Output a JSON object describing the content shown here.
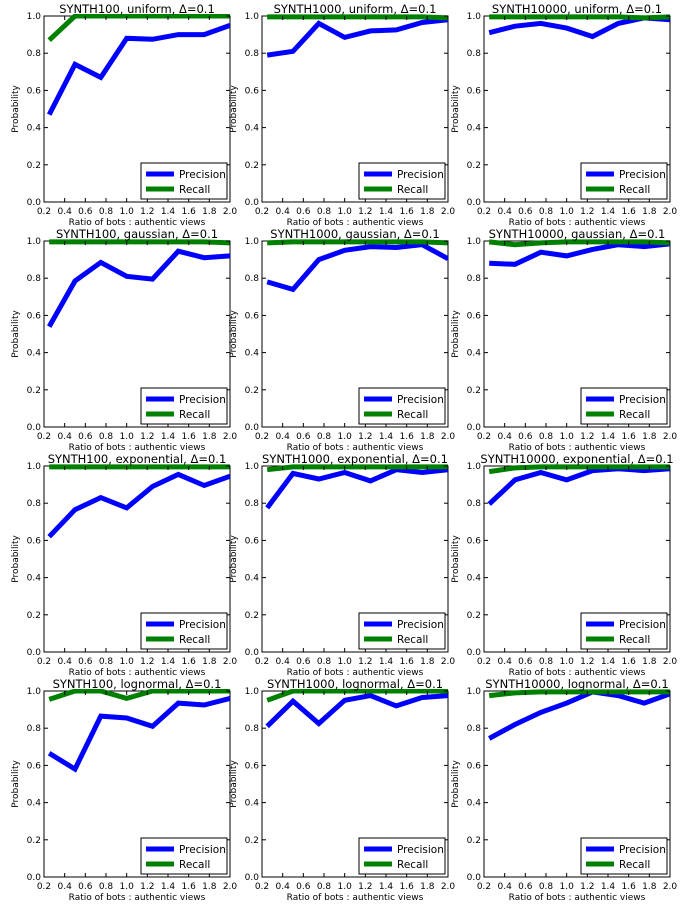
{
  "colors": {
    "precision": "#0000ff",
    "recall": "#008000"
  },
  "shared_axes": {
    "xlabel": "Ratio of bots : authentic views",
    "ylabel": "Probability",
    "xlim": [
      0.2,
      2.0
    ],
    "ylim": [
      0.0,
      1.0
    ],
    "xticks": [
      "0.2",
      "0.4",
      "0.6",
      "0.8",
      "1.0",
      "1.2",
      "1.4",
      "1.6",
      "1.8",
      "2.0"
    ],
    "yticks": [
      "0.0",
      "0.2",
      "0.4",
      "0.6",
      "0.8",
      "1.0"
    ],
    "legend_position": "lower right"
  },
  "chart_data": [
    {
      "type": "line",
      "title": "SYNTH100, uniform, Δ=0.1",
      "x": [
        0.25,
        0.5,
        0.75,
        1.0,
        1.25,
        1.5,
        1.75,
        2.0
      ],
      "series": [
        {
          "name": "Precision",
          "values": [
            0.47,
            0.74,
            0.67,
            0.88,
            0.875,
            0.9,
            0.9,
            0.95
          ]
        },
        {
          "name": "Recall",
          "values": [
            0.87,
            1.0,
            1.0,
            1.0,
            1.0,
            1.0,
            1.0,
            1.0
          ]
        }
      ]
    },
    {
      "type": "line",
      "title": "SYNTH1000, uniform, Δ=0.1",
      "x": [
        0.25,
        0.5,
        0.75,
        1.0,
        1.25,
        1.5,
        1.75,
        2.0
      ],
      "series": [
        {
          "name": "Precision",
          "values": [
            0.79,
            0.81,
            0.96,
            0.885,
            0.92,
            0.925,
            0.965,
            0.98
          ]
        },
        {
          "name": "Recall",
          "values": [
            0.995,
            0.995,
            0.995,
            0.995,
            0.995,
            0.995,
            0.995,
            0.99
          ]
        }
      ]
    },
    {
      "type": "line",
      "title": "SYNTH10000, uniform, Δ=0.1",
      "x": [
        0.25,
        0.5,
        0.75,
        1.0,
        1.25,
        1.5,
        1.75,
        2.0
      ],
      "series": [
        {
          "name": "Precision",
          "values": [
            0.91,
            0.945,
            0.96,
            0.935,
            0.89,
            0.96,
            0.99,
            0.98
          ]
        },
        {
          "name": "Recall",
          "values": [
            0.995,
            0.995,
            0.995,
            0.995,
            0.995,
            0.995,
            0.99,
            0.995
          ]
        }
      ]
    },
    {
      "type": "line",
      "title": "SYNTH100, gaussian, Δ=0.1",
      "x": [
        0.25,
        0.5,
        0.75,
        1.0,
        1.25,
        1.5,
        1.75,
        2.0
      ],
      "series": [
        {
          "name": "Precision",
          "values": [
            0.54,
            0.785,
            0.885,
            0.81,
            0.795,
            0.945,
            0.91,
            0.92
          ]
        },
        {
          "name": "Recall",
          "values": [
            0.995,
            0.995,
            0.995,
            0.995,
            0.995,
            0.995,
            0.995,
            0.99
          ]
        }
      ]
    },
    {
      "type": "line",
      "title": "SYNTH1000, gaussian, Δ=0.1",
      "x": [
        0.25,
        0.5,
        0.75,
        1.0,
        1.25,
        1.5,
        1.75,
        2.0
      ],
      "series": [
        {
          "name": "Precision",
          "values": [
            0.78,
            0.74,
            0.9,
            0.95,
            0.97,
            0.965,
            0.98,
            0.905
          ]
        },
        {
          "name": "Recall",
          "values": [
            0.99,
            0.995,
            0.995,
            0.995,
            0.995,
            0.995,
            0.995,
            0.99
          ]
        }
      ]
    },
    {
      "type": "line",
      "title": "SYNTH10000, gaussian, Δ=0.1",
      "x": [
        0.25,
        0.5,
        0.75,
        1.0,
        1.25,
        1.5,
        1.75,
        2.0
      ],
      "series": [
        {
          "name": "Precision",
          "values": [
            0.88,
            0.875,
            0.94,
            0.92,
            0.955,
            0.98,
            0.97,
            0.985
          ]
        },
        {
          "name": "Recall",
          "values": [
            0.995,
            0.98,
            0.99,
            0.995,
            0.995,
            0.995,
            0.995,
            0.99
          ]
        }
      ]
    },
    {
      "type": "line",
      "title": "SYNTH100, exponential, Δ=0.1",
      "x": [
        0.25,
        0.5,
        0.75,
        1.0,
        1.25,
        1.5,
        1.75,
        2.0
      ],
      "series": [
        {
          "name": "Precision",
          "values": [
            0.62,
            0.765,
            0.83,
            0.775,
            0.89,
            0.955,
            0.895,
            0.945
          ]
        },
        {
          "name": "Recall",
          "values": [
            0.995,
            0.995,
            0.995,
            0.995,
            0.995,
            0.995,
            0.995,
            0.995
          ]
        }
      ]
    },
    {
      "type": "line",
      "title": "SYNTH1000, exponential, Δ=0.1",
      "x": [
        0.25,
        0.5,
        0.75,
        1.0,
        1.25,
        1.5,
        1.75,
        2.0
      ],
      "series": [
        {
          "name": "Precision",
          "values": [
            0.775,
            0.96,
            0.93,
            0.965,
            0.92,
            0.98,
            0.965,
            0.98
          ]
        },
        {
          "name": "Recall",
          "values": [
            0.98,
            0.995,
            0.995,
            0.995,
            0.995,
            0.995,
            0.995,
            0.995
          ]
        }
      ]
    },
    {
      "type": "line",
      "title": "SYNTH10000, exponential, Δ=0.1",
      "x": [
        0.25,
        0.5,
        0.75,
        1.0,
        1.25,
        1.5,
        1.75,
        2.0
      ],
      "series": [
        {
          "name": "Precision",
          "values": [
            0.795,
            0.925,
            0.965,
            0.925,
            0.975,
            0.985,
            0.975,
            0.985
          ]
        },
        {
          "name": "Recall",
          "values": [
            0.97,
            0.99,
            0.995,
            0.995,
            0.995,
            0.995,
            0.995,
            0.995
          ]
        }
      ]
    },
    {
      "type": "line",
      "title": "SYNTH100, lognormal, Δ=0.1",
      "x": [
        0.25,
        0.5,
        0.75,
        1.0,
        1.25,
        1.5,
        1.75,
        2.0
      ],
      "series": [
        {
          "name": "Precision",
          "values": [
            0.665,
            0.58,
            0.865,
            0.855,
            0.81,
            0.935,
            0.925,
            0.96
          ]
        },
        {
          "name": "Recall",
          "values": [
            0.955,
            1.0,
            1.0,
            0.96,
            1.0,
            1.0,
            1.0,
            1.0
          ]
        }
      ]
    },
    {
      "type": "line",
      "title": "SYNTH1000, lognormal, Δ=0.1",
      "x": [
        0.25,
        0.5,
        0.75,
        1.0,
        1.25,
        1.5,
        1.75,
        2.0
      ],
      "series": [
        {
          "name": "Precision",
          "values": [
            0.81,
            0.945,
            0.825,
            0.95,
            0.975,
            0.92,
            0.965,
            0.975
          ]
        },
        {
          "name": "Recall",
          "values": [
            0.95,
            1.0,
            1.0,
            1.0,
            1.0,
            1.0,
            1.0,
            1.0
          ]
        }
      ]
    },
    {
      "type": "line",
      "title": "SYNTH10000, lognormal, Δ=0.1",
      "x": [
        0.25,
        0.5,
        0.75,
        1.0,
        1.25,
        1.5,
        1.75,
        2.0
      ],
      "series": [
        {
          "name": "Precision",
          "values": [
            0.745,
            0.82,
            0.885,
            0.935,
            0.995,
            0.975,
            0.935,
            0.985
          ]
        },
        {
          "name": "Recall",
          "values": [
            0.975,
            0.99,
            0.995,
            0.995,
            0.995,
            0.995,
            0.995,
            0.995
          ]
        }
      ]
    }
  ]
}
